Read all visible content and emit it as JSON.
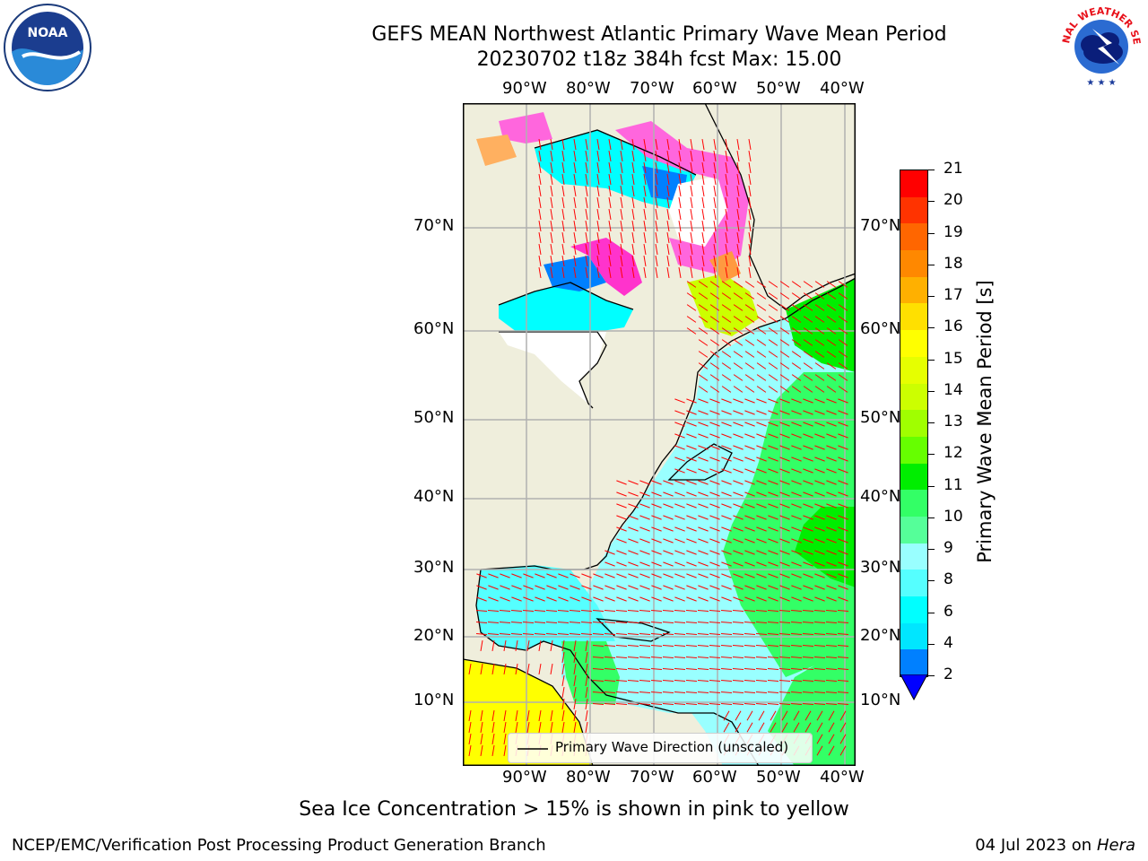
{
  "header": {
    "title_line1": "GEFS MEAN Northwest Atlantic Primary Wave Mean Period",
    "title_line2": "20230702 t18z 384h fcst   Max: 15.00"
  },
  "logos": {
    "left": "NOAA",
    "right": "NATIONAL WEATHER SERVICE"
  },
  "map": {
    "lon_labels": [
      "90°W",
      "80°W",
      "70°W",
      "60°W",
      "50°W",
      "40°W"
    ],
    "lat_labels": [
      "70°N",
      "60°N",
      "50°N",
      "40°N",
      "30°N",
      "20°N",
      "10°N"
    ],
    "legend_label": "Primary Wave Direction (unscaled)",
    "colors": {
      "land": "#efeedc",
      "ice_free_land_white": "#ffffff",
      "coast": "#000000",
      "grid": "#b0b0b0",
      "arrow": "#ff0000"
    }
  },
  "colorbar": {
    "label": "Primary Wave Mean Period [s]",
    "ticks": [
      "21",
      "20",
      "19",
      "18",
      "17",
      "16",
      "15",
      "14",
      "13",
      "12",
      "11",
      "10",
      "9",
      "8",
      "6",
      "4",
      "2"
    ],
    "colors": [
      "#ff0000",
      "#ff3300",
      "#ff6600",
      "#ff8800",
      "#ffb000",
      "#ffe000",
      "#ffff00",
      "#e6ff00",
      "#ccff00",
      "#a0ff00",
      "#66ff00",
      "#00ee00",
      "#33ff66",
      "#55ff99",
      "#99ffff",
      "#55ffff",
      "#00ffff",
      "#00e6ff",
      "#0080ff"
    ],
    "under_color": "#0000ff"
  },
  "footer": {
    "note": "Sea Ice Concentration > 15% is shown in pink to yellow",
    "left": "NCEP/EMC/Verification Post Processing Product Generation Branch",
    "right_date": "04 Jul 2023 on ",
    "right_host": "Hera"
  }
}
